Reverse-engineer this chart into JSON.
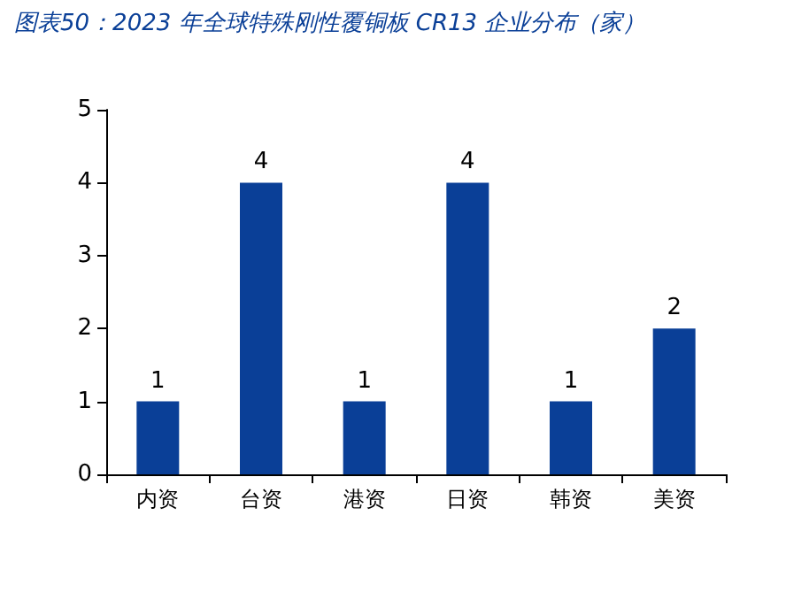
{
  "chart_data": {
    "type": "bar",
    "title": "图表50：2023 年全球特殊刚性覆铜板 CR13 企业分布（家）",
    "categories": [
      "内资",
      "台资",
      "港资",
      "日资",
      "韩资",
      "美资"
    ],
    "values": [
      1,
      4,
      1,
      4,
      1,
      2
    ],
    "color": "#0a3f97",
    "ylim": [
      0,
      5
    ],
    "yticks": [
      0,
      1,
      2,
      3,
      4,
      5
    ],
    "grid": false,
    "data_labels": true
  }
}
